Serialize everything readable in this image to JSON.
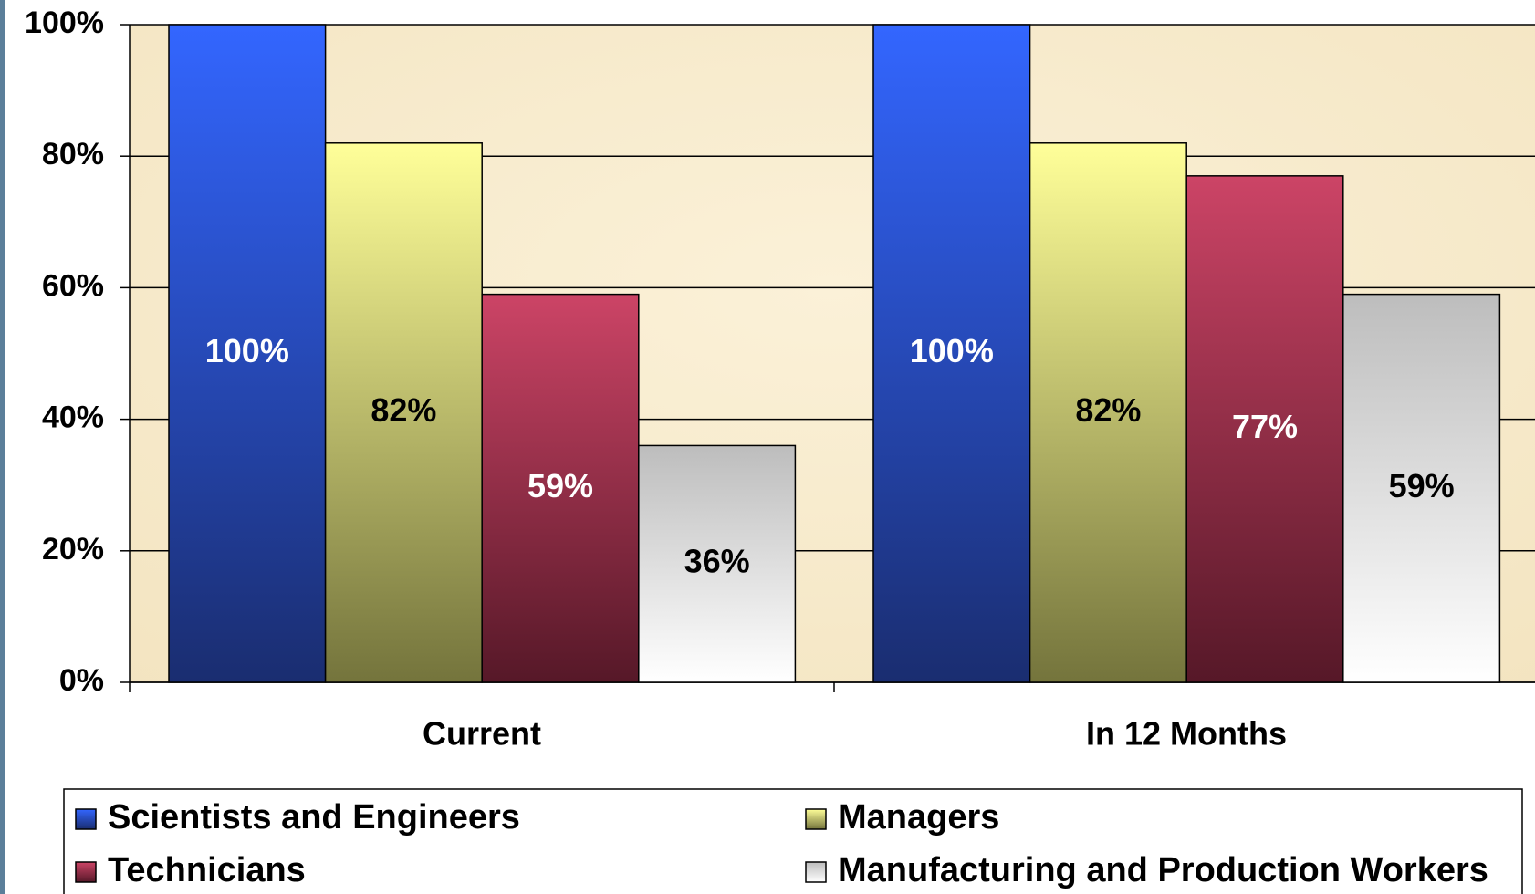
{
  "chart_data": {
    "type": "bar",
    "categories": [
      "Current",
      "In 12 Months"
    ],
    "series": [
      {
        "name": "Scientists and Engineers",
        "color": "#3366ff",
        "gradient": [
          "#3366ff",
          "#1a2d70"
        ],
        "label_color": "#ffffff",
        "values": [
          100,
          100
        ],
        "value_labels": [
          "100%",
          "100%"
        ]
      },
      {
        "name": "Managers",
        "color": "#ffff99",
        "gradient": [
          "#ffff99",
          "#74743c"
        ],
        "label_color": "#000000",
        "values": [
          82,
          82
        ],
        "value_labels": [
          "82%",
          "82%"
        ]
      },
      {
        "name": "Technicians",
        "color": "#cc4466",
        "gradient": [
          "#cc4466",
          "#561828"
        ],
        "label_color": "#ffffff",
        "values": [
          59,
          77
        ],
        "value_labels": [
          "59%",
          "77%"
        ]
      },
      {
        "name": "Manufacturing and Production Workers",
        "color": "#e0e0e0",
        "gradient": [
          "#bdbdbd",
          "#ffffff"
        ],
        "label_color": "#000000",
        "values": [
          36,
          59
        ],
        "value_labels": [
          "36%",
          "59%"
        ]
      }
    ],
    "ylim": [
      0,
      100
    ],
    "yticks": [
      {
        "value": 0,
        "label": "0%"
      },
      {
        "value": 20,
        "label": "20%"
      },
      {
        "value": 40,
        "label": "40%"
      },
      {
        "value": 60,
        "label": "60%"
      },
      {
        "value": 80,
        "label": "80%"
      },
      {
        "value": 100,
        "label": "100%"
      }
    ],
    "grid": true,
    "legend": "bottom"
  }
}
